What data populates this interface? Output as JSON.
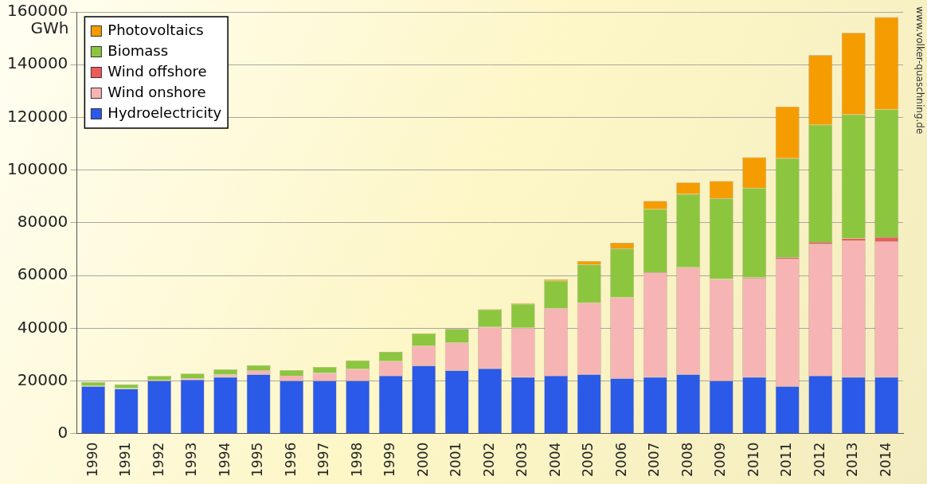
{
  "chart_data": {
    "type": "bar",
    "stacked": true,
    "ylabel": "GWh",
    "annotations": [
      "www.volker-quaschning.de"
    ],
    "categories": [
      "1990",
      "1991",
      "1992",
      "1993",
      "1994",
      "1995",
      "1996",
      "1997",
      "1998",
      "1999",
      "2000",
      "2001",
      "2002",
      "2003",
      "2004",
      "2005",
      "2006",
      "2007",
      "2008",
      "2009",
      "2010",
      "2011",
      "2012",
      "2013",
      "2014"
    ],
    "series": [
      {
        "name": "Hydroelectricity",
        "color": "#2b59e8",
        "values": [
          18000,
          17000,
          20000,
          20500,
          21500,
          22500,
          20000,
          20000,
          20000,
          22000,
          25800,
          24000,
          24700,
          21500,
          22000,
          22500,
          21000,
          21500,
          22500,
          20000,
          21500,
          18000,
          22000,
          21500,
          21500
        ]
      },
      {
        "name": "Wind onshore",
        "color": "#f7b4b4",
        "values": [
          100,
          200,
          300,
          600,
          900,
          1500,
          2000,
          3000,
          4500,
          5500,
          7500,
          10500,
          15800,
          18700,
          25500,
          27200,
          30700,
          39700,
          40600,
          38600,
          37600,
          48300,
          50000,
          51700,
          51500
        ]
      },
      {
        "name": "Wind offshore",
        "color": "#ee5a5a",
        "values": [
          0,
          0,
          0,
          0,
          0,
          0,
          0,
          0,
          0,
          0,
          0,
          0,
          0,
          0,
          0,
          0,
          0,
          0,
          0,
          40,
          170,
          570,
          700,
          900,
          1500
        ]
      },
      {
        "name": "Biomass",
        "color": "#8cc63f",
        "values": [
          1500,
          1500,
          1600,
          1700,
          2000,
          2000,
          2100,
          2300,
          3300,
          3500,
          4700,
          5200,
          6600,
          9000,
          10500,
          14500,
          18500,
          24000,
          27800,
          30600,
          33900,
          37600,
          44500,
          47000,
          48500
        ]
      },
      {
        "name": "Photovoltaics",
        "color": "#f59c00",
        "values": [
          0,
          0,
          0,
          0,
          0,
          0,
          0,
          0,
          35,
          30,
          60,
          100,
          200,
          300,
          550,
          1300,
          2200,
          3100,
          4400,
          6600,
          11700,
          19600,
          26400,
          31000,
          35000
        ]
      }
    ],
    "ylim": [
      0,
      160000
    ],
    "yticks": [
      0,
      20000,
      40000,
      60000,
      80000,
      100000,
      120000,
      140000,
      160000
    ],
    "grid": true,
    "legend": "top-left"
  }
}
